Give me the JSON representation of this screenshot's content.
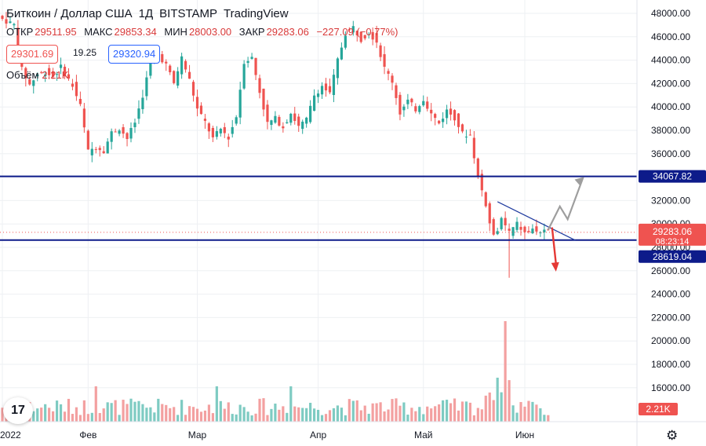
{
  "header": {
    "symbol": "Биткоин / Доллар США",
    "interval": "1Д",
    "exchange": "BITSTAMP",
    "source": "TradingView"
  },
  "ohlc": {
    "open_label": "ОТКР",
    "open": "29511.95",
    "high_label": "МАКС",
    "high": "29853.34",
    "low_label": "МИН",
    "low": "28003.00",
    "close_label": "ЗАКР",
    "close": "29283.06",
    "change": "−227.09 (−0.77%)"
  },
  "trade": {
    "sell": "29301.69",
    "spread": "19.25",
    "buy": "29320.94"
  },
  "volume": {
    "label": "Объём",
    "value": "2.21K"
  },
  "price_labels": {
    "resistance": "34067.82",
    "last": "29283.06",
    "countdown": "08:23:14",
    "support": "28619.04",
    "volume": "2.21K"
  },
  "colors": {
    "up": "#26a69a",
    "down": "#ef5350",
    "up_vol": "#7ecbc2",
    "down_vol": "#f3a0a0",
    "level": "#0d1b8a",
    "trendline": "#1e3a9e",
    "arrow_up": "#9e9e9e",
    "arrow_down": "#e53935",
    "grid": "#eef0f3"
  },
  "chart_data": {
    "type": "candlestick",
    "y_ticks": [
      "48000.00",
      "46000.00",
      "44000.00",
      "42000.00",
      "40000.00",
      "38000.00",
      "36000.00",
      "34000.00",
      "32000.00",
      "30000.00",
      "28000.00",
      "26000.00",
      "24000.00",
      "22000.00",
      "20000.00",
      "18000.00",
      "16000.00"
    ],
    "x_labels": [
      "2022",
      "Фев",
      "Мар",
      "Апр",
      "Май",
      "Июн"
    ],
    "ylim": [
      14200,
      48600
    ],
    "horizontal_levels": [
      34067.82,
      28619.04
    ],
    "last_price": 29283.06,
    "close_anchors": [
      [
        0,
        47500
      ],
      [
        3,
        47000
      ],
      [
        5,
        43200
      ],
      [
        7,
        41900
      ],
      [
        9,
        42800
      ],
      [
        11,
        43000
      ],
      [
        13,
        42600
      ],
      [
        15,
        43400
      ],
      [
        18,
        41800
      ],
      [
        20,
        40100
      ],
      [
        22,
        36200
      ],
      [
        24,
        36600
      ],
      [
        26,
        36300
      ],
      [
        28,
        37800
      ],
      [
        30,
        38200
      ],
      [
        32,
        37300
      ],
      [
        34,
        38700
      ],
      [
        36,
        41000
      ],
      [
        38,
        43800
      ],
      [
        40,
        44500
      ],
      [
        42,
        43600
      ],
      [
        44,
        42000
      ],
      [
        46,
        44200
      ],
      [
        48,
        42300
      ],
      [
        50,
        39800
      ],
      [
        52,
        38700
      ],
      [
        54,
        37300
      ],
      [
        56,
        38100
      ],
      [
        58,
        37400
      ],
      [
        60,
        39200
      ],
      [
        62,
        43900
      ],
      [
        64,
        44200
      ],
      [
        66,
        41300
      ],
      [
        68,
        38600
      ],
      [
        70,
        39000
      ],
      [
        72,
        38300
      ],
      [
        74,
        39500
      ],
      [
        76,
        38300
      ],
      [
        78,
        38900
      ],
      [
        80,
        41000
      ],
      [
        82,
        41800
      ],
      [
        84,
        41100
      ],
      [
        86,
        44000
      ],
      [
        88,
        46300
      ],
      [
        90,
        46800
      ],
      [
        92,
        45800
      ],
      [
        94,
        46400
      ],
      [
        96,
        45600
      ],
      [
        98,
        43300
      ],
      [
        100,
        42200
      ],
      [
        102,
        39500
      ],
      [
        104,
        40500
      ],
      [
        106,
        39800
      ],
      [
        108,
        40700
      ],
      [
        110,
        39400
      ],
      [
        112,
        38600
      ],
      [
        114,
        39700
      ],
      [
        116,
        39100
      ],
      [
        118,
        37700
      ],
      [
        120,
        37600
      ],
      [
        122,
        34000
      ],
      [
        124,
        31700
      ],
      [
        126,
        28900
      ],
      [
        128,
        30300
      ],
      [
        130,
        29200
      ],
      [
        132,
        30000
      ],
      [
        134,
        29200
      ],
      [
        136,
        29500
      ],
      [
        138,
        29300
      ],
      [
        140,
        29283
      ]
    ],
    "x_label_index": [
      0,
      22,
      50,
      81,
      108,
      134
    ],
    "trendline": [
      [
        127,
        31900
      ],
      [
        147,
        28600
      ]
    ],
    "projection_up": [
      [
        140,
        29500
      ],
      [
        143,
        31500
      ],
      [
        145,
        30400
      ],
      [
        149,
        34000
      ]
    ],
    "projection_down": [
      [
        141,
        29700
      ],
      [
        142,
        26600
      ]
    ]
  }
}
